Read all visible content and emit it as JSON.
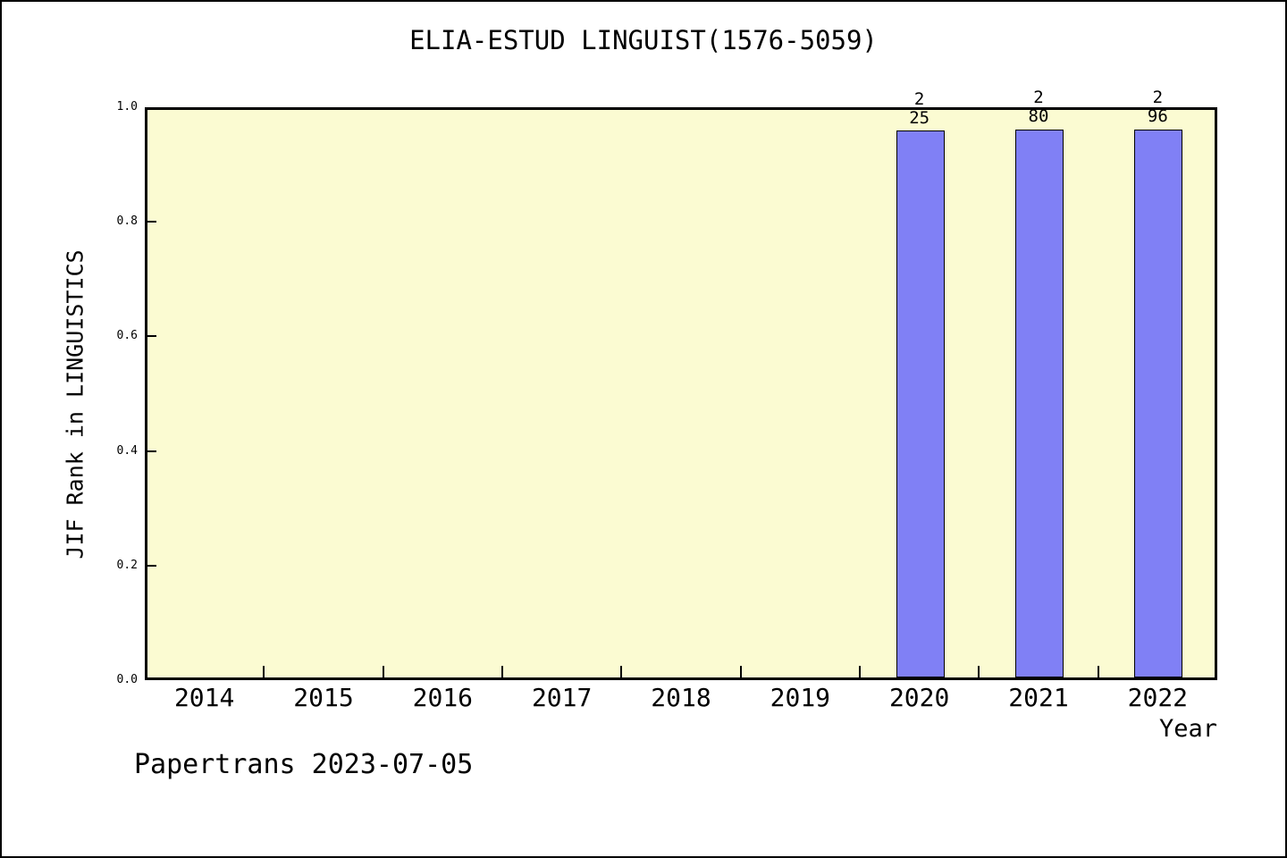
{
  "figure": {
    "footer": "Papertrans 2023-07-05"
  },
  "chart_data": {
    "type": "bar",
    "title": "ELIA-ESTUD LINGUIST(1576-5059)",
    "xlabel": "Year",
    "ylabel": "JIF Rank in LINGUISTICS",
    "categories": [
      "2014",
      "2015",
      "2016",
      "2017",
      "2018",
      "2019",
      "2020",
      "2021",
      "2022"
    ],
    "values": [
      null,
      null,
      null,
      null,
      null,
      null,
      0.963,
      0.966,
      0.965
    ],
    "bar_annotations": [
      {
        "category": "2020",
        "rank": "2",
        "total": "25"
      },
      {
        "category": "2021",
        "rank": "2",
        "total": "80"
      },
      {
        "category": "2022",
        "rank": "2",
        "total": "96"
      }
    ],
    "ylim": [
      0,
      1
    ],
    "yticks": [
      "1.0",
      "0.8",
      "0.6",
      "0.4",
      "0.2",
      "0.0"
    ],
    "grid": false,
    "legend": null,
    "layout": {
      "legend_position": "none",
      "tick_direction": "in"
    },
    "colors": {
      "bar_fill": "#8080f5",
      "bar_edge": "#000000",
      "plot_bg": "#fbfbd2",
      "frame": "#000000",
      "text": "#000000",
      "page_bg": "#ffffff"
    }
  }
}
